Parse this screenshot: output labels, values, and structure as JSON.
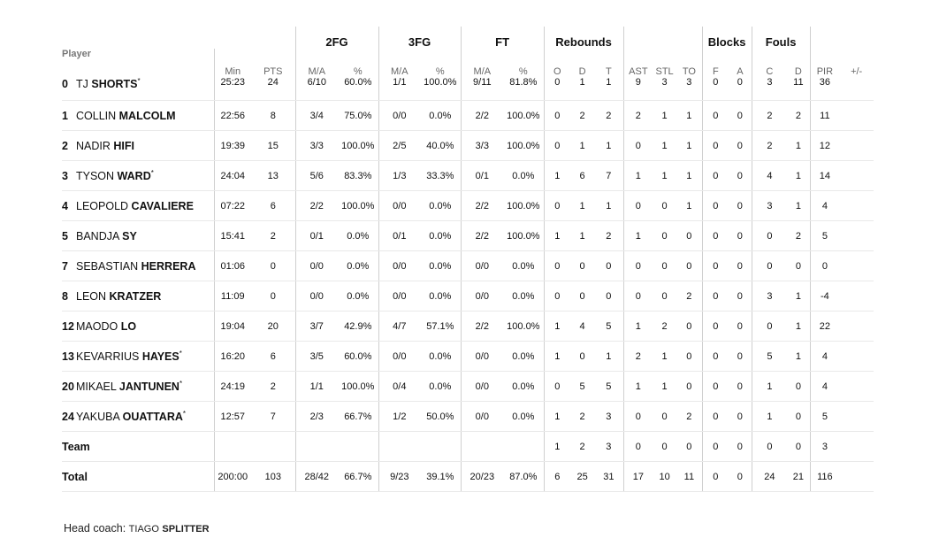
{
  "header": {
    "groups": {
      "fg2": "2FG",
      "fg3": "3FG",
      "ft": "FT",
      "rebounds": "Rebounds",
      "blocks": "Blocks",
      "fouls": "Fouls"
    },
    "columns": {
      "player": "Player",
      "min": "Min",
      "pts": "PTS",
      "fg2_ma": "M/A",
      "fg2_pct": "%",
      "fg3_ma": "M/A",
      "fg3_pct": "%",
      "ft_ma": "M/A",
      "ft_pct": "%",
      "reb_o": "O",
      "reb_d": "D",
      "reb_t": "T",
      "ast": "AST",
      "stl": "STL",
      "to": "TO",
      "blk_f": "F",
      "blk_a": "A",
      "foul_c": "C",
      "foul_d": "D",
      "pir": "PIR",
      "pm": "+/-"
    }
  },
  "players": [
    {
      "number": "0",
      "first": "TJ",
      "last": "SHORTS",
      "starter": true,
      "min": "25:23",
      "pts": "24",
      "fg2_ma": "6/10",
      "fg2_pct": "60.0%",
      "fg3_ma": "1/1",
      "fg3_pct": "100.0%",
      "ft_ma": "9/11",
      "ft_pct": "81.8%",
      "reb_o": "0",
      "reb_d": "1",
      "reb_t": "1",
      "ast": "9",
      "stl": "3",
      "to": "3",
      "blk_f": "0",
      "blk_a": "0",
      "foul_c": "3",
      "foul_d": "11",
      "pir": "36",
      "pm": ""
    },
    {
      "number": "1",
      "first": "COLLIN",
      "last": "MALCOLM",
      "starter": false,
      "min": "22:56",
      "pts": "8",
      "fg2_ma": "3/4",
      "fg2_pct": "75.0%",
      "fg3_ma": "0/0",
      "fg3_pct": "0.0%",
      "ft_ma": "2/2",
      "ft_pct": "100.0%",
      "reb_o": "0",
      "reb_d": "2",
      "reb_t": "2",
      "ast": "2",
      "stl": "1",
      "to": "1",
      "blk_f": "0",
      "blk_a": "0",
      "foul_c": "2",
      "foul_d": "2",
      "pir": "11",
      "pm": ""
    },
    {
      "number": "2",
      "first": "NADIR",
      "last": "HIFI",
      "starter": false,
      "min": "19:39",
      "pts": "15",
      "fg2_ma": "3/3",
      "fg2_pct": "100.0%",
      "fg3_ma": "2/5",
      "fg3_pct": "40.0%",
      "ft_ma": "3/3",
      "ft_pct": "100.0%",
      "reb_o": "0",
      "reb_d": "1",
      "reb_t": "1",
      "ast": "0",
      "stl": "1",
      "to": "1",
      "blk_f": "0",
      "blk_a": "0",
      "foul_c": "2",
      "foul_d": "1",
      "pir": "12",
      "pm": ""
    },
    {
      "number": "3",
      "first": "TYSON",
      "last": "WARD",
      "starter": true,
      "min": "24:04",
      "pts": "13",
      "fg2_ma": "5/6",
      "fg2_pct": "83.3%",
      "fg3_ma": "1/3",
      "fg3_pct": "33.3%",
      "ft_ma": "0/1",
      "ft_pct": "0.0%",
      "reb_o": "1",
      "reb_d": "6",
      "reb_t": "7",
      "ast": "1",
      "stl": "1",
      "to": "1",
      "blk_f": "0",
      "blk_a": "0",
      "foul_c": "4",
      "foul_d": "1",
      "pir": "14",
      "pm": ""
    },
    {
      "number": "4",
      "first": "LEOPOLD",
      "last": "CAVALIERE",
      "starter": false,
      "min": "07:22",
      "pts": "6",
      "fg2_ma": "2/2",
      "fg2_pct": "100.0%",
      "fg3_ma": "0/0",
      "fg3_pct": "0.0%",
      "ft_ma": "2/2",
      "ft_pct": "100.0%",
      "reb_o": "0",
      "reb_d": "1",
      "reb_t": "1",
      "ast": "0",
      "stl": "0",
      "to": "1",
      "blk_f": "0",
      "blk_a": "0",
      "foul_c": "3",
      "foul_d": "1",
      "pir": "4",
      "pm": ""
    },
    {
      "number": "5",
      "first": "BANDJA",
      "last": "SY",
      "starter": false,
      "min": "15:41",
      "pts": "2",
      "fg2_ma": "0/1",
      "fg2_pct": "0.0%",
      "fg3_ma": "0/1",
      "fg3_pct": "0.0%",
      "ft_ma": "2/2",
      "ft_pct": "100.0%",
      "reb_o": "1",
      "reb_d": "1",
      "reb_t": "2",
      "ast": "1",
      "stl": "0",
      "to": "0",
      "blk_f": "0",
      "blk_a": "0",
      "foul_c": "0",
      "foul_d": "2",
      "pir": "5",
      "pm": ""
    },
    {
      "number": "7",
      "first": "SEBASTIAN",
      "last": "HERRERA",
      "starter": false,
      "min": "01:06",
      "pts": "0",
      "fg2_ma": "0/0",
      "fg2_pct": "0.0%",
      "fg3_ma": "0/0",
      "fg3_pct": "0.0%",
      "ft_ma": "0/0",
      "ft_pct": "0.0%",
      "reb_o": "0",
      "reb_d": "0",
      "reb_t": "0",
      "ast": "0",
      "stl": "0",
      "to": "0",
      "blk_f": "0",
      "blk_a": "0",
      "foul_c": "0",
      "foul_d": "0",
      "pir": "0",
      "pm": ""
    },
    {
      "number": "8",
      "first": "LEON",
      "last": "KRATZER",
      "starter": false,
      "min": "11:09",
      "pts": "0",
      "fg2_ma": "0/0",
      "fg2_pct": "0.0%",
      "fg3_ma": "0/0",
      "fg3_pct": "0.0%",
      "ft_ma": "0/0",
      "ft_pct": "0.0%",
      "reb_o": "0",
      "reb_d": "0",
      "reb_t": "0",
      "ast": "0",
      "stl": "0",
      "to": "2",
      "blk_f": "0",
      "blk_a": "0",
      "foul_c": "3",
      "foul_d": "1",
      "pir": "-4",
      "pm": ""
    },
    {
      "number": "12",
      "first": "MAODO",
      "last": "LO",
      "starter": false,
      "min": "19:04",
      "pts": "20",
      "fg2_ma": "3/7",
      "fg2_pct": "42.9%",
      "fg3_ma": "4/7",
      "fg3_pct": "57.1%",
      "ft_ma": "2/2",
      "ft_pct": "100.0%",
      "reb_o": "1",
      "reb_d": "4",
      "reb_t": "5",
      "ast": "1",
      "stl": "2",
      "to": "0",
      "blk_f": "0",
      "blk_a": "0",
      "foul_c": "0",
      "foul_d": "1",
      "pir": "22",
      "pm": ""
    },
    {
      "number": "13",
      "first": "KEVARRIUS",
      "last": "HAYES",
      "starter": true,
      "min": "16:20",
      "pts": "6",
      "fg2_ma": "3/5",
      "fg2_pct": "60.0%",
      "fg3_ma": "0/0",
      "fg3_pct": "0.0%",
      "ft_ma": "0/0",
      "ft_pct": "0.0%",
      "reb_o": "1",
      "reb_d": "0",
      "reb_t": "1",
      "ast": "2",
      "stl": "1",
      "to": "0",
      "blk_f": "0",
      "blk_a": "0",
      "foul_c": "5",
      "foul_d": "1",
      "pir": "4",
      "pm": ""
    },
    {
      "number": "20",
      "first": "MIKAEL",
      "last": "JANTUNEN",
      "starter": true,
      "min": "24:19",
      "pts": "2",
      "fg2_ma": "1/1",
      "fg2_pct": "100.0%",
      "fg3_ma": "0/4",
      "fg3_pct": "0.0%",
      "ft_ma": "0/0",
      "ft_pct": "0.0%",
      "reb_o": "0",
      "reb_d": "5",
      "reb_t": "5",
      "ast": "1",
      "stl": "1",
      "to": "0",
      "blk_f": "0",
      "blk_a": "0",
      "foul_c": "1",
      "foul_d": "0",
      "pir": "4",
      "pm": ""
    },
    {
      "number": "24",
      "first": "YAKUBA",
      "last": "OUATTARA",
      "starter": true,
      "min": "12:57",
      "pts": "7",
      "fg2_ma": "2/3",
      "fg2_pct": "66.7%",
      "fg3_ma": "1/2",
      "fg3_pct": "50.0%",
      "ft_ma": "0/0",
      "ft_pct": "0.0%",
      "reb_o": "1",
      "reb_d": "2",
      "reb_t": "3",
      "ast": "0",
      "stl": "0",
      "to": "2",
      "blk_f": "0",
      "blk_a": "0",
      "foul_c": "1",
      "foul_d": "0",
      "pir": "5",
      "pm": ""
    }
  ],
  "team": {
    "label": "Team",
    "min": "",
    "pts": "",
    "fg2_ma": "",
    "fg2_pct": "",
    "fg3_ma": "",
    "fg3_pct": "",
    "ft_ma": "",
    "ft_pct": "",
    "reb_o": "1",
    "reb_d": "2",
    "reb_t": "3",
    "ast": "0",
    "stl": "0",
    "to": "0",
    "blk_f": "0",
    "blk_a": "0",
    "foul_c": "0",
    "foul_d": "0",
    "pir": "3",
    "pm": ""
  },
  "total": {
    "label": "Total",
    "min": "200:00",
    "pts": "103",
    "fg2_ma": "28/42",
    "fg2_pct": "66.7%",
    "fg3_ma": "9/23",
    "fg3_pct": "39.1%",
    "ft_ma": "20/23",
    "ft_pct": "87.0%",
    "reb_o": "6",
    "reb_d": "25",
    "reb_t": "31",
    "ast": "17",
    "stl": "10",
    "to": "11",
    "blk_f": "0",
    "blk_a": "0",
    "foul_c": "24",
    "foul_d": "21",
    "pir": "116",
    "pm": ""
  },
  "coach": {
    "label": "Head coach:",
    "first": "TIAGO",
    "last": "SPLITTER"
  },
  "starter_mark": "*"
}
